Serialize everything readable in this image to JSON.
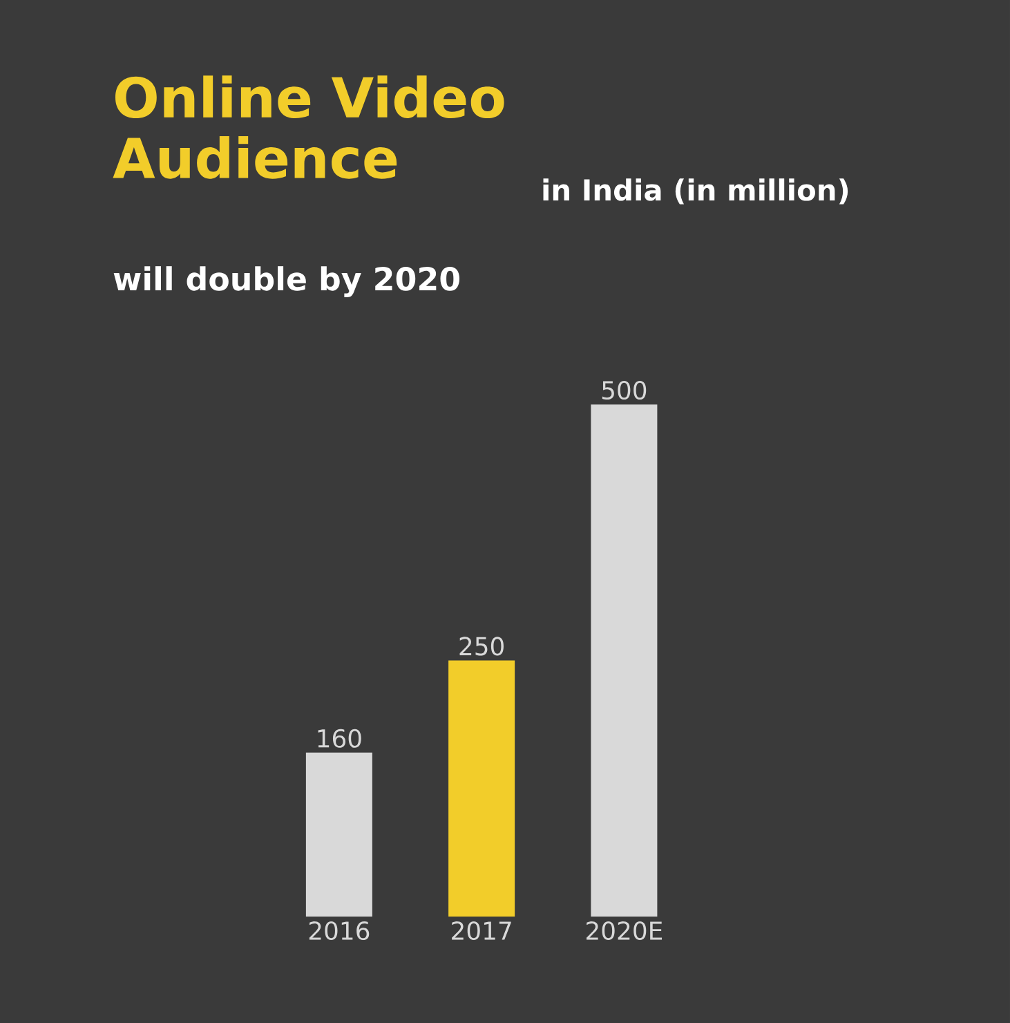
{
  "chart_data": {
    "type": "bar",
    "title": "Online Video Audience",
    "subtitle": "in India (in million)",
    "annotations": [
      "will double by 2020"
    ],
    "categories": [
      "2016",
      "2017",
      "2020E"
    ],
    "values": [
      160,
      250,
      500
    ],
    "colors": [
      "#d9d9d9",
      "#f2cd2a",
      "#d9d9d9"
    ],
    "data_labels": true
  }
}
